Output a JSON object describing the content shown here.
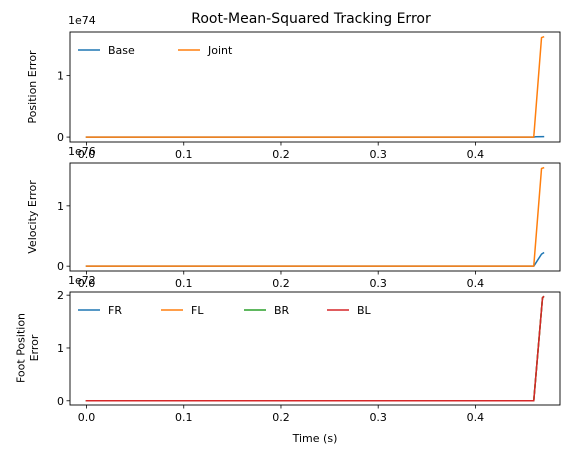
{
  "chart_data": [
    {
      "type": "line",
      "title": "Root-Mean-Squared Tracking Error",
      "ylabel": "Position Error",
      "xlabel": "",
      "scale_label": "1e74",
      "xlim": [
        -0.017,
        0.487
      ],
      "ylim": [
        -0.08,
        1.71
      ],
      "x_ticks": [
        "0.0",
        "0.1",
        "0.2",
        "0.3",
        "0.4"
      ],
      "y_ticks": [
        {
          "value": 0,
          "label": "0"
        },
        {
          "value": 1,
          "label": "1"
        }
      ],
      "legend": "upper-left",
      "legend_columns": 2,
      "series": [
        {
          "name": "Base",
          "color": "#1f77b4",
          "x": [
            0.0,
            0.46,
            0.462,
            0.47
          ],
          "y": [
            0.0,
            0.0,
            0.005,
            0.008
          ]
        },
        {
          "name": "Joint",
          "color": "#ff7f0e",
          "x": [
            0.0,
            0.46,
            0.468,
            0.47
          ],
          "y": [
            0.0,
            0.0,
            1.62,
            1.63
          ]
        }
      ]
    },
    {
      "type": "line",
      "title": "",
      "ylabel": "Velocity Error",
      "xlabel": "",
      "scale_label": "1e76",
      "xlim": [
        -0.017,
        0.487
      ],
      "ylim": [
        -0.08,
        1.71
      ],
      "x_ticks": [
        "0.0",
        "0.1",
        "0.2",
        "0.3",
        "0.4"
      ],
      "y_ticks": [
        {
          "value": 0,
          "label": "0"
        },
        {
          "value": 1,
          "label": "1"
        }
      ],
      "legend": "none",
      "series": [
        {
          "name": "",
          "color": "#1f77b4",
          "x": [
            0.0,
            0.46,
            0.468,
            0.47
          ],
          "y": [
            0.0,
            0.0,
            0.2,
            0.22
          ]
        },
        {
          "name": "",
          "color": "#ff7f0e",
          "x": [
            0.0,
            0.46,
            0.468,
            0.47
          ],
          "y": [
            0.0,
            0.0,
            1.62,
            1.63
          ]
        }
      ]
    },
    {
      "type": "line",
      "title": "",
      "ylabel": "Foot Position Error",
      "xlabel": "Time (s)",
      "scale_label": "1e72",
      "xlim": [
        -0.017,
        0.487
      ],
      "ylim": [
        -0.08,
        2.06
      ],
      "x_ticks": [
        "0.0",
        "0.1",
        "0.2",
        "0.3",
        "0.4"
      ],
      "y_ticks": [
        {
          "value": 0,
          "label": "0"
        },
        {
          "value": 1,
          "label": "1"
        },
        {
          "value": 2,
          "label": "2"
        }
      ],
      "legend": "upper-left",
      "legend_columns": 4,
      "series": [
        {
          "name": "FR",
          "color": "#1f77b4",
          "x": [
            0.0,
            0.46,
            0.469,
            0.47
          ],
          "y": [
            0.0,
            0.0,
            1.95,
            1.97
          ]
        },
        {
          "name": "FL",
          "color": "#ff7f0e",
          "x": [
            0.0,
            0.46,
            0.469,
            0.47
          ],
          "y": [
            0.0,
            0.0,
            1.95,
            1.97
          ]
        },
        {
          "name": "BR",
          "color": "#2ca02c",
          "x": [
            0.0,
            0.46,
            0.469,
            0.47
          ],
          "y": [
            0.0,
            0.0,
            1.95,
            1.97
          ]
        },
        {
          "name": "BL",
          "color": "#d62728",
          "x": [
            0.0,
            0.46,
            0.469,
            0.47
          ],
          "y": [
            0.0,
            0.0,
            1.95,
            1.97
          ]
        }
      ]
    }
  ]
}
